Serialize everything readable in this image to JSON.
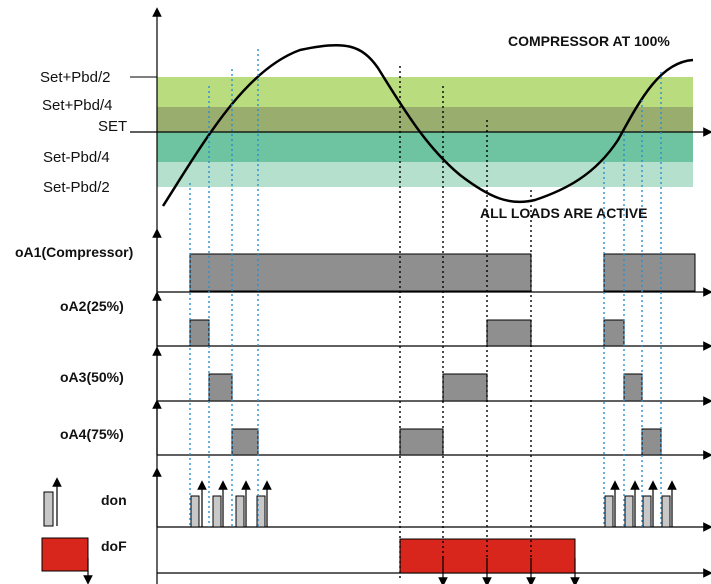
{
  "colors": {
    "band_top": "#b9dc7e",
    "band_mid": "#98ad6e",
    "band_low": "#6ec3a0",
    "band_bottom": "#b5e0cd",
    "output_on": "#8f8f8f",
    "don_pulse": "#c8c8c8",
    "dof_block": "#d9261c",
    "guide_dotted_blue": "#2a8fd0",
    "guide_dotted_black": "#000000"
  },
  "band_labels": {
    "set_plus_half": "Set+Pbd/2",
    "set_plus_quarter": "Set+Pbd/4",
    "set": "SET",
    "set_minus_quarter": "Set-Pbd/4",
    "set_minus_half": "Set-Pbd/2"
  },
  "annotations": {
    "compressor_full": "COMPRESSOR AT 100%",
    "all_loads": "ALL LOADS ARE ACTIVE"
  },
  "outputs": {
    "oa1": "oA1(Compressor)",
    "oa2": "oA2(25%)",
    "oa3": "oA3(50%)",
    "oa4": "oA4(75%)",
    "don": "don",
    "dof": "doF"
  }
}
